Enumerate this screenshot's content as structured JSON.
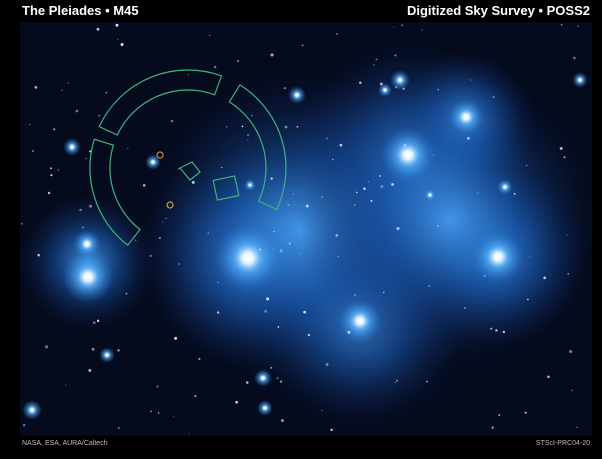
{
  "header": {
    "title": "The Pleiades • M45",
    "survey": "Digitized Sky Survey • POSS2"
  },
  "footer": {
    "credit": "NASA, ESA, AURA/Caltech",
    "id": "STScI-PRC04-20"
  }
}
